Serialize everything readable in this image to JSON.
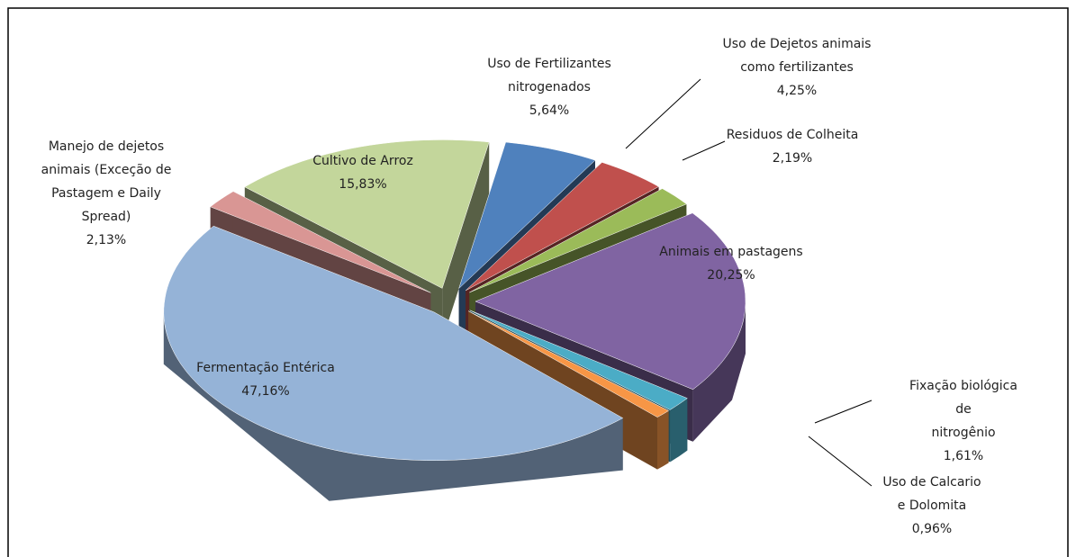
{
  "chart_data": {
    "type": "pie3d",
    "categories": [
      "Uso de Fertilizantes\nnitrogenados",
      "Uso de Dejetos animais\ncomo fertilizantes",
      "Residuos de Colheita",
      "Animais em pastagens",
      "Fixação biológica de\nnitrogênio",
      "Uso de Calcario\ne Dolomita",
      "Fermentação Entérica",
      "Manejo de dejetos\nanimais (Exceção de\nPastagem e Daily\nSpread)",
      "Cultivo de Arroz"
    ],
    "values": [
      5.64,
      4.25,
      2.19,
      20.25,
      1.61,
      0.96,
      47.16,
      2.13,
      15.83
    ],
    "value_labels": [
      "5,64%",
      "4,25%",
      "2,19%",
      "20,25%",
      "1,61%",
      "0,96%",
      "47,16%",
      "2,13%",
      "15,83%"
    ],
    "colors": [
      "#4f81bd",
      "#c0504d",
      "#9bbb59",
      "#8064a2",
      "#4bacc6",
      "#f79646",
      "#95b3d7",
      "#d99694",
      "#c3d69b"
    ]
  }
}
